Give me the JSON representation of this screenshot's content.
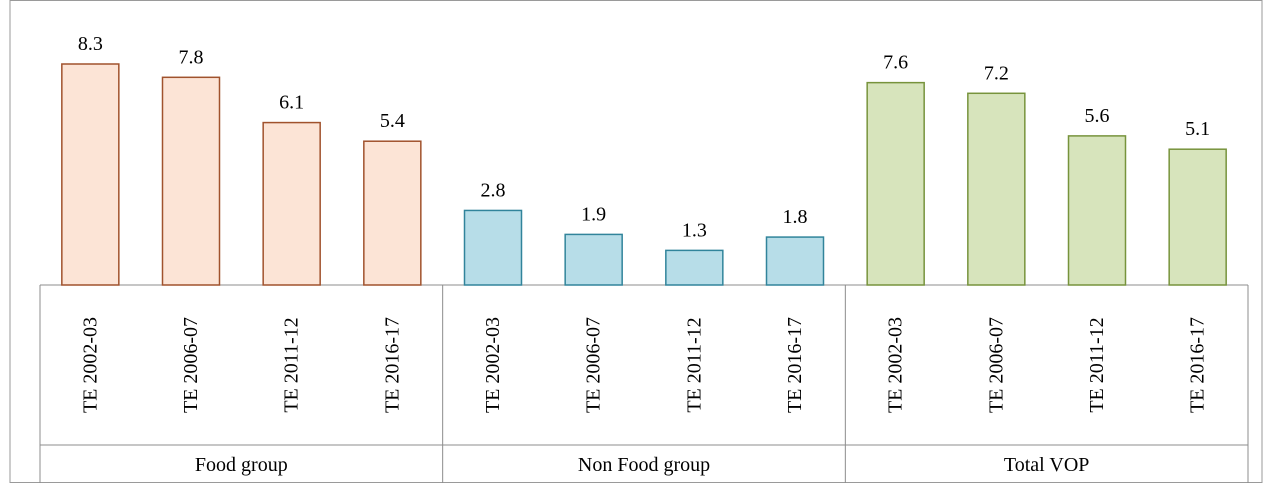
{
  "chart_data": {
    "type": "bar",
    "title": "",
    "xlabel": "",
    "ylabel": "",
    "ylim": [
      0,
      8.3
    ],
    "grid": false,
    "legend": "none",
    "groups": [
      {
        "name": "Food group",
        "fill": "#fce4d6",
        "stroke": "#a0522d",
        "categories": [
          "TE 2002-03",
          "TE 2006-07",
          "TE 2011-12",
          "TE 2016-17"
        ],
        "values": [
          8.3,
          7.8,
          6.1,
          5.4
        ],
        "labels": [
          "8.3",
          "7.8",
          "6.1",
          "5.4"
        ]
      },
      {
        "name": "Non Food group",
        "fill": "#b7dde8",
        "stroke": "#31849b",
        "categories": [
          "TE 2002-03",
          "TE 2006-07",
          "TE 2011-12",
          "TE 2016-17"
        ],
        "values": [
          2.8,
          1.9,
          1.3,
          1.8
        ],
        "labels": [
          "2.8",
          "1.9",
          "1.3",
          "1.8"
        ]
      },
      {
        "name": "Total VOP",
        "fill": "#d7e4bc",
        "stroke": "#77933c",
        "categories": [
          "TE 2002-03",
          "TE 2006-07",
          "TE 2011-12",
          "TE 2016-17"
        ],
        "values": [
          7.6,
          7.2,
          5.6,
          5.1
        ],
        "labels": [
          "7.6",
          "7.2",
          "5.6",
          "5.1"
        ]
      }
    ]
  }
}
